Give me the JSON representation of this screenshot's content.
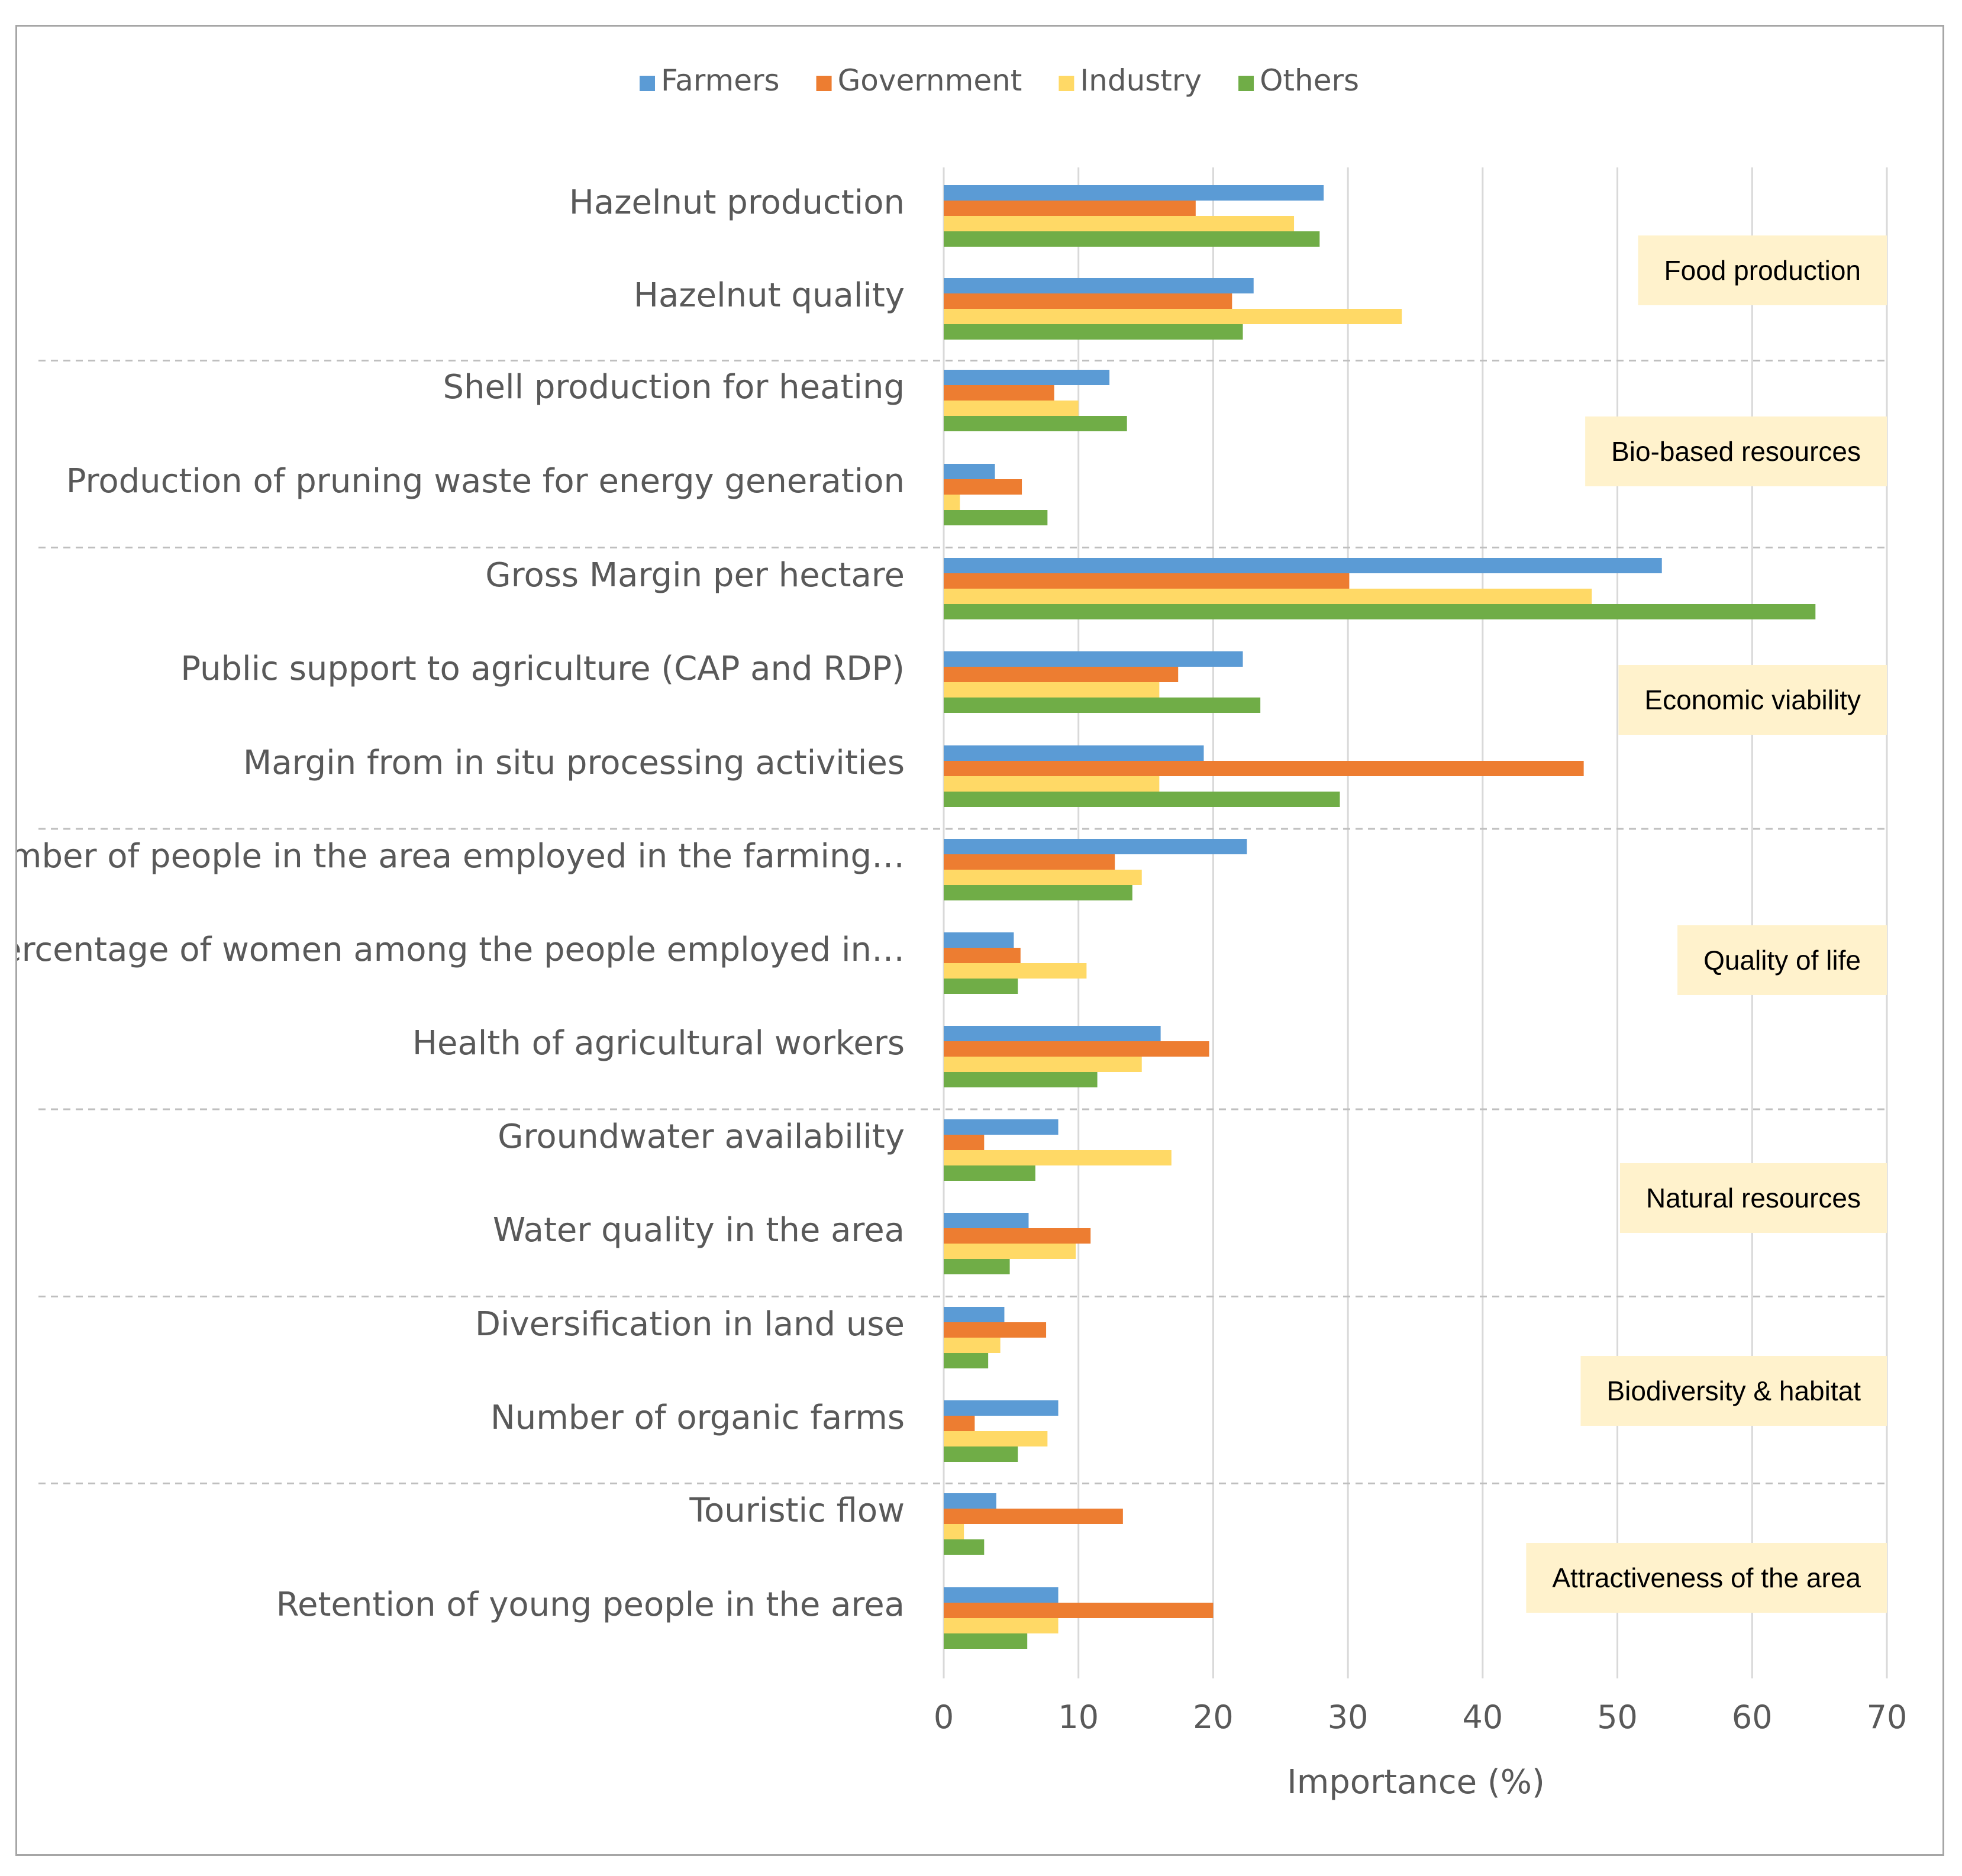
{
  "chart_data": {
    "type": "bar",
    "orientation": "horizontal",
    "xlabel": "Importance (%)",
    "xlim": [
      0,
      70
    ],
    "xticks": [
      0,
      10,
      20,
      30,
      40,
      50,
      60,
      70
    ],
    "grid": "vertical",
    "legend_position": "top-center",
    "categories": [
      "Hazelnut production",
      "Hazelnut quality",
      "Shell production for heating",
      "Production of pruning waste for energy generation",
      "Gross Margin per hectare",
      "Public support to agriculture (CAP and RDP)",
      "Margin from in situ processing activities",
      "Number of people in the area employed in the farming…",
      "Percentage of women among the people employed in…",
      "Health of agricultural workers",
      "Groundwater availability",
      "Water quality in the area",
      "Diversification in land use",
      "Number of organic farms",
      "Touristic flow",
      "Retention of young people in the area"
    ],
    "series": [
      {
        "name": "Farmers",
        "color": "#5b9bd5",
        "values": [
          28.2,
          23.0,
          12.3,
          3.8,
          53.3,
          22.2,
          19.3,
          22.5,
          5.2,
          16.1,
          8.5,
          6.3,
          4.5,
          8.5,
          3.9,
          8.5
        ]
      },
      {
        "name": "Government",
        "color": "#ed7d31",
        "values": [
          18.7,
          21.4,
          8.2,
          5.8,
          30.1,
          17.4,
          47.5,
          12.7,
          5.7,
          19.7,
          3.0,
          10.9,
          7.6,
          2.3,
          13.3,
          20.0
        ]
      },
      {
        "name": "Industry",
        "color": "#ffd966",
        "values": [
          26.0,
          34.0,
          10.0,
          1.2,
          48.1,
          16.0,
          16.0,
          14.7,
          10.6,
          14.7,
          16.9,
          9.8,
          4.2,
          7.7,
          1.5,
          8.5
        ]
      },
      {
        "name": "Others",
        "color": "#70ad47",
        "values": [
          27.9,
          22.2,
          13.6,
          7.7,
          64.7,
          23.5,
          29.4,
          14.0,
          5.5,
          11.4,
          6.8,
          4.9,
          3.3,
          5.5,
          3.0,
          6.2
        ]
      }
    ],
    "groups": [
      {
        "name": "Food production",
        "start": 0,
        "end": 1
      },
      {
        "name": "Bio-based resources",
        "start": 2,
        "end": 3
      },
      {
        "name": "Economic viability",
        "start": 4,
        "end": 6
      },
      {
        "name": "Quality of life",
        "start": 7,
        "end": 9
      },
      {
        "name": "Natural resources",
        "start": 10,
        "end": 11
      },
      {
        "name": "Biodiversity & habitat",
        "start": 12,
        "end": 13
      },
      {
        "name": "Attractiveness of the area",
        "start": 14,
        "end": 15
      }
    ],
    "group_label_color": "#fff2cc"
  }
}
